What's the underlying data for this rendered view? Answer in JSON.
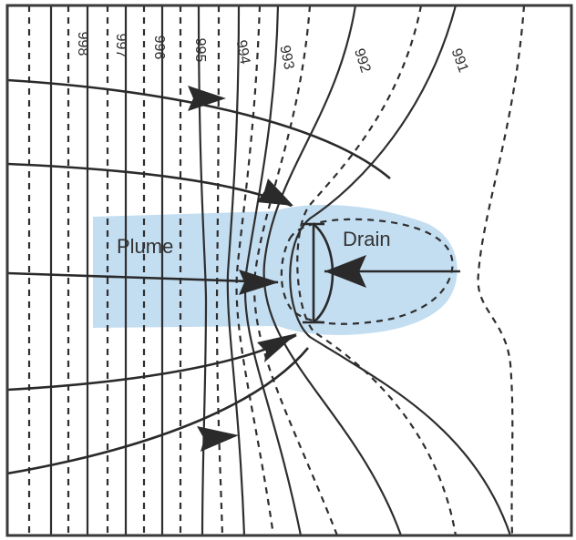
{
  "labels": {
    "plume": "Plume",
    "drain": "Drain"
  },
  "contours": [
    {
      "value": "998"
    },
    {
      "value": "997"
    },
    {
      "value": "996"
    },
    {
      "value": "995"
    },
    {
      "value": "994"
    },
    {
      "value": "993"
    },
    {
      "value": "992"
    },
    {
      "value": "991"
    }
  ],
  "colors": {
    "plume_fill": "#bcd9ef",
    "lines": "#2e2e2e",
    "frame": "#3a3a3a"
  },
  "icons": {
    "flow_arrow": "filled-triangle-arrowhead"
  }
}
